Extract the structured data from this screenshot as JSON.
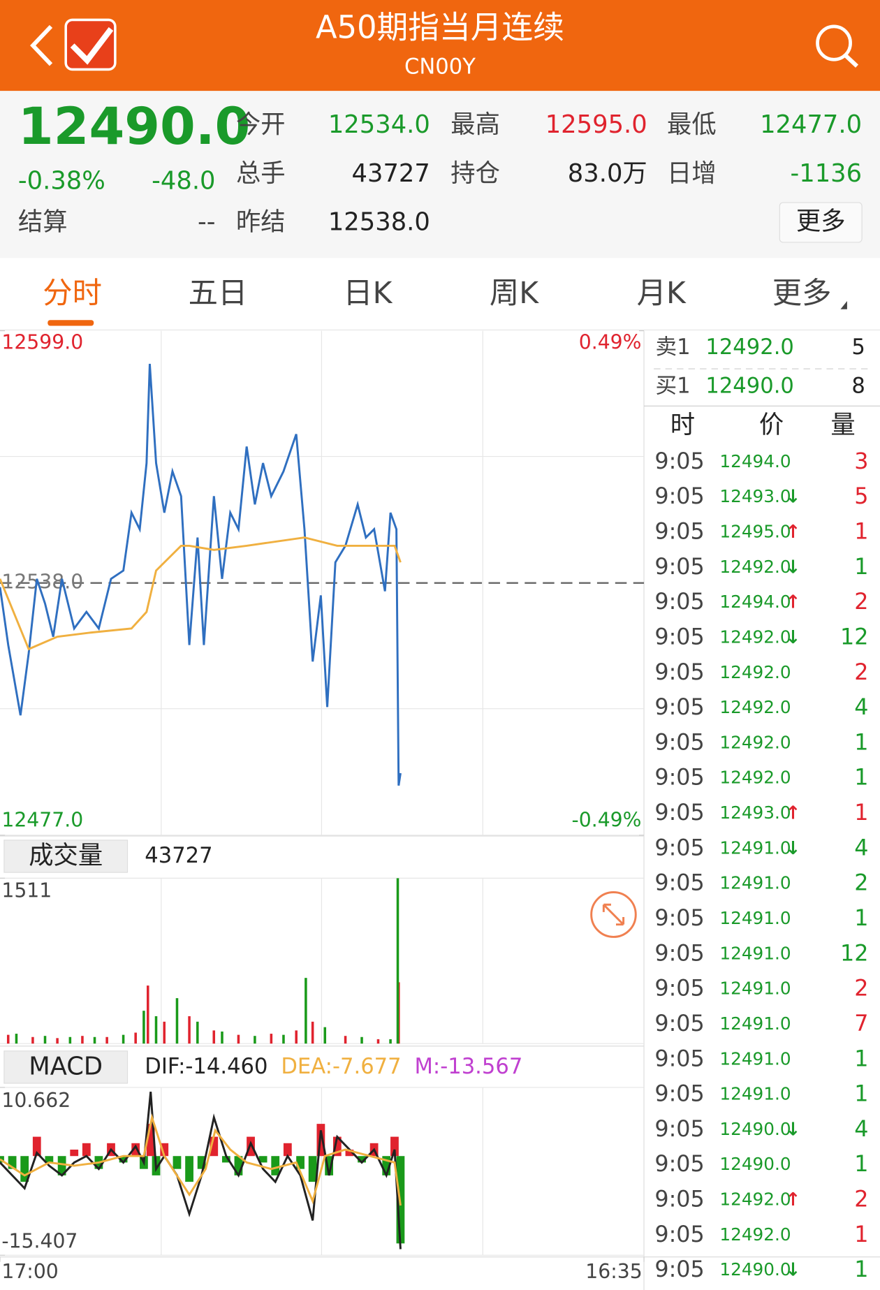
{
  "header": {
    "title": "A50期指当月连续",
    "subtitle": "CN00Y"
  },
  "quote": {
    "price": "12490.0",
    "change_pct": "-0.38%",
    "change": "-48.0",
    "settle_label": "结算",
    "settle": "--",
    "more": "更多",
    "fields": [
      {
        "label": "今开",
        "value": "12534.0",
        "color": "#1a9a2a"
      },
      {
        "label": "最高",
        "value": "12595.0",
        "color": "#e0232e"
      },
      {
        "label": "最低",
        "value": "12477.0",
        "color": "#1a9a2a"
      },
      {
        "label": "总手",
        "value": "43727",
        "color": "#222222"
      },
      {
        "label": "持仓",
        "value": "83.0万",
        "color": "#222222"
      },
      {
        "label": "日增",
        "value": "-1136",
        "color": "#1a9a2a"
      },
      {
        "label": "昨结",
        "value": "12538.0",
        "color": "#222222"
      }
    ]
  },
  "tabs": [
    "分时",
    "五日",
    "日K",
    "周K",
    "月K",
    "更多"
  ],
  "chart_data": [
    {
      "type": "line",
      "xlim": [
        0,
        1415
      ],
      "ylim": [
        12477,
        12599
      ],
      "yticks": [
        {
          "value": 12477,
          "label": "12477.0"
        },
        {
          "value": 12599,
          "label": "12599.0"
        }
      ],
      "reference": {
        "value": 12538,
        "label": "12538.0"
      },
      "y2lim": [
        -0.49,
        0.49
      ],
      "y2ticks": [
        {
          "value": -0.49,
          "label": "-0.49%"
        },
        {
          "value": 0.49,
          "label": "0.49%"
        }
      ],
      "series": [
        {
          "color": "#2f6fc0",
          "x": [
            0,
            18,
            45,
            63,
            81,
            99,
            117,
            136,
            163,
            190,
            217,
            244,
            271,
            289,
            307,
            322,
            329,
            343,
            361,
            379,
            398,
            416,
            434,
            448,
            470,
            488,
            506,
            524,
            542,
            560,
            578,
            596,
            623,
            651,
            669,
            687,
            705,
            719,
            737,
            759,
            786,
            804,
            822,
            846,
            858,
            871,
            876,
            880
          ],
          "values": [
            12537,
            12523,
            12506,
            12521,
            12539,
            12533,
            12525,
            12539,
            12527,
            12531,
            12527,
            12539,
            12541,
            12555,
            12551,
            12567,
            12591,
            12567,
            12555,
            12565,
            12559,
            12523,
            12549,
            12523,
            12559,
            12539,
            12555,
            12551,
            12571,
            12557,
            12567,
            12559,
            12565,
            12574,
            12551,
            12519,
            12535,
            12508,
            12543,
            12547,
            12557,
            12549,
            12551,
            12536,
            12555,
            12551,
            12489,
            12492
          ]
        },
        {
          "color": "#f0b040",
          "x": [
            0,
            63,
            126,
            199,
            289,
            322,
            343,
            398,
            416,
            470,
            542,
            669,
            741,
            813,
            867,
            880
          ],
          "values": [
            12539,
            12522,
            12525,
            12526,
            12527,
            12531,
            12541,
            12547,
            12547,
            12546,
            12547,
            12549,
            12547,
            12547,
            12547,
            12543
          ]
        }
      ]
    },
    {
      "type": "bar",
      "label": "成交量",
      "total": "43727",
      "xlim": [
        0,
        1415
      ],
      "ylim": [
        0,
        1511
      ],
      "yticks": [
        1511
      ],
      "series": [
        {
          "color": "#e0232e",
          "x": [
            18,
            72,
            126,
            181,
            235,
            298,
            325,
            361,
            416,
            470,
            524,
            596,
            651,
            687,
            759,
            831,
            876
          ],
          "values": [
            80,
            60,
            50,
            70,
            60,
            100,
            530,
            200,
            250,
            120,
            80,
            90,
            120,
            200,
            70,
            40,
            560
          ]
        },
        {
          "color": "#1a9a1a",
          "x": [
            36,
            99,
            154,
            208,
            271,
            316,
            343,
            389,
            434,
            488,
            560,
            623,
            672,
            714,
            795,
            858,
            874
          ],
          "values": [
            90,
            70,
            60,
            60,
            80,
            300,
            250,
            415,
            200,
            110,
            70,
            80,
            600,
            150,
            60,
            40,
            1511
          ]
        }
      ]
    },
    {
      "type": "macd",
      "label": "MACD",
      "xlim": [
        0,
        1415
      ],
      "ylim": [
        -15.407,
        10.662
      ],
      "yticks": [
        10.662,
        -15.407
      ],
      "xticks": [
        {
          "value": 0,
          "label": "17:00"
        },
        {
          "value": 1415,
          "label": "16:35"
        }
      ],
      "series": [
        {
          "name": "DIF:-14.460",
          "color": "#222222",
          "x": [
            0,
            27,
            54,
            81,
            108,
            136,
            163,
            190,
            217,
            244,
            271,
            298,
            316,
            331,
            343,
            361,
            389,
            416,
            443,
            470,
            497,
            524,
            551,
            578,
            605,
            632,
            660,
            687,
            705,
            723,
            741,
            768,
            795,
            822,
            849,
            867,
            880
          ],
          "values": [
            -1,
            -3,
            -5,
            0.5,
            -1.5,
            -3,
            -1,
            0,
            -2,
            1,
            -1,
            1.5,
            -1,
            10,
            -2,
            0,
            -3,
            -9,
            -3,
            6,
            0,
            -3,
            2,
            -2,
            -4,
            0,
            -3,
            -10,
            4,
            -3,
            3,
            1,
            -1,
            1,
            -3,
            1,
            -14.46
          ]
        },
        {
          "name": "DEA:-7.677",
          "color": "#f0b040",
          "x": [
            0,
            54,
            108,
            163,
            217,
            271,
            316,
            334,
            361,
            416,
            452,
            473,
            506,
            542,
            596,
            651,
            687,
            714,
            759,
            813,
            867,
            880
          ],
          "values": [
            -0.5,
            -3,
            -1,
            -1.5,
            -1,
            0,
            0,
            6,
            0,
            -6,
            -2,
            4,
            1,
            -1,
            -2,
            -1,
            -7,
            0,
            1,
            0,
            -1,
            -7.677
          ]
        },
        {
          "name": "M:-13.567",
          "color": "#c040d0",
          "up": "#e0232e",
          "down": "#1a9a1a",
          "x": [
            0,
            27,
            54,
            81,
            108,
            136,
            163,
            190,
            217,
            244,
            271,
            298,
            316,
            331,
            343,
            361,
            389,
            416,
            443,
            470,
            497,
            524,
            551,
            578,
            605,
            632,
            660,
            687,
            705,
            723,
            741,
            768,
            795,
            822,
            849,
            867,
            880
          ],
          "values": [
            -1,
            -2,
            -4,
            3,
            -1,
            -3,
            1,
            2,
            -2,
            2,
            -1,
            2,
            -2,
            5,
            -3,
            2,
            -2,
            -4,
            -2,
            3,
            -1,
            -3,
            3,
            -1,
            -3,
            2,
            -2,
            -4,
            5,
            -3,
            3,
            1,
            -1,
            2,
            -3,
            3,
            -13.567
          ]
        }
      ]
    }
  ],
  "order_book": [
    {
      "side": "卖1",
      "price": "12492.0",
      "volume": 5
    },
    {
      "side": "买1",
      "price": "12490.0",
      "volume": 8
    }
  ],
  "trades_header": [
    "时",
    "价",
    "量"
  ],
  "trades": [
    {
      "time": "9:05",
      "price": "12494.0",
      "volume": 3,
      "color": "#e0232e"
    },
    {
      "time": "9:05",
      "price": "12493.0",
      "dir": "↓",
      "volume": 5,
      "color": "#e0232e"
    },
    {
      "time": "9:05",
      "price": "12495.0",
      "dir": "↑",
      "volume": 1,
      "color": "#e0232e"
    },
    {
      "time": "9:05",
      "price": "12492.0",
      "dir": "↓",
      "volume": 1,
      "color": "#1a9a2a"
    },
    {
      "time": "9:05",
      "price": "12494.0",
      "dir": "↑",
      "volume": 2,
      "color": "#e0232e"
    },
    {
      "time": "9:05",
      "price": "12492.0",
      "dir": "↓",
      "volume": 12,
      "color": "#1a9a2a"
    },
    {
      "time": "9:05",
      "price": "12492.0",
      "volume": 2,
      "color": "#e0232e"
    },
    {
      "time": "9:05",
      "price": "12492.0",
      "volume": 4,
      "color": "#1a9a2a"
    },
    {
      "time": "9:05",
      "price": "12492.0",
      "volume": 1,
      "color": "#1a9a2a"
    },
    {
      "time": "9:05",
      "price": "12492.0",
      "volume": 1,
      "color": "#1a9a2a"
    },
    {
      "time": "9:05",
      "price": "12493.0",
      "dir": "↑",
      "volume": 1,
      "color": "#e0232e"
    },
    {
      "time": "9:05",
      "price": "12491.0",
      "dir": "↓",
      "volume": 4,
      "color": "#1a9a2a"
    },
    {
      "time": "9:05",
      "price": "12491.0",
      "volume": 2,
      "color": "#1a9a2a"
    },
    {
      "time": "9:05",
      "price": "12491.0",
      "volume": 1,
      "color": "#1a9a2a"
    },
    {
      "time": "9:05",
      "price": "12491.0",
      "volume": 12,
      "color": "#1a9a2a"
    },
    {
      "time": "9:05",
      "price": "12491.0",
      "volume": 2,
      "color": "#e0232e"
    },
    {
      "time": "9:05",
      "price": "12491.0",
      "volume": 7,
      "color": "#e0232e"
    },
    {
      "time": "9:05",
      "price": "12491.0",
      "volume": 1,
      "color": "#1a9a2a"
    },
    {
      "time": "9:05",
      "price": "12491.0",
      "volume": 1,
      "color": "#1a9a2a"
    },
    {
      "time": "9:05",
      "price": "12490.0",
      "dir": "↓",
      "volume": 4,
      "color": "#1a9a2a"
    },
    {
      "time": "9:05",
      "price": "12490.0",
      "volume": 1,
      "color": "#1a9a2a"
    },
    {
      "time": "9:05",
      "price": "12492.0",
      "dir": "↑",
      "volume": 2,
      "color": "#e0232e"
    },
    {
      "time": "9:05",
      "price": "12492.0",
      "volume": 1,
      "color": "#e0232e"
    },
    {
      "time": "9:05",
      "price": "12490.0",
      "dir": "↓",
      "volume": 1,
      "color": "#1a9a2a"
    }
  ]
}
